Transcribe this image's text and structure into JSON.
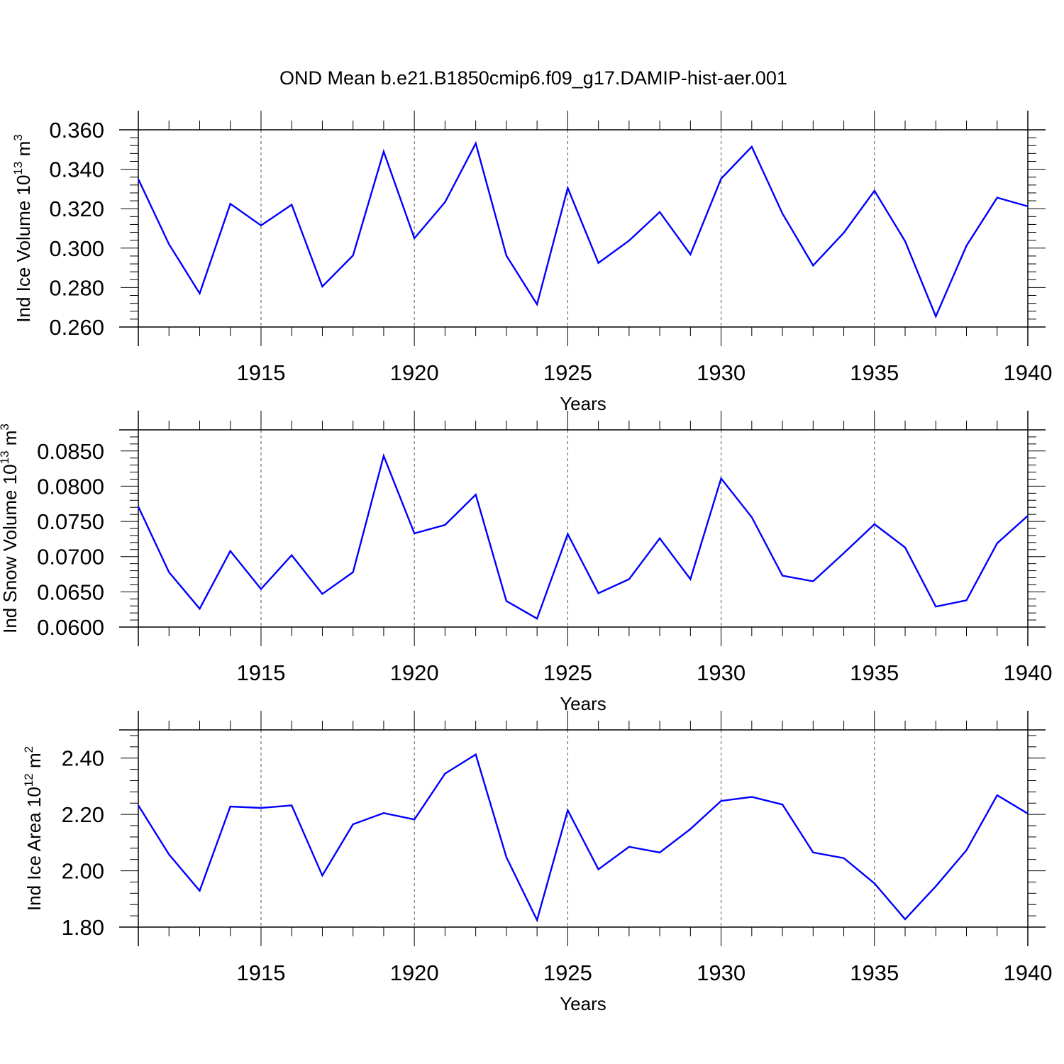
{
  "figure_title": "OND Mean b.e21.B1850cmip6.f09_g17.DAMIP-hist-aer.001",
  "colors": {
    "line": "#0000ff",
    "axis": "#000000",
    "grid": "#555555"
  },
  "chart_data": [
    {
      "type": "line",
      "title": "OND Mean b.e21.B1850cmip6.f09_g17.DAMIP-hist-aer.001",
      "xlabel": "Years",
      "ylabel": {
        "text": "Ind Ice Volume 10",
        "exponent": "13",
        "unit": " m",
        "unit_exponent": "3"
      },
      "xlim": [
        1911,
        1940
      ],
      "ylim": [
        0.26,
        0.36
      ],
      "x_ticks": [
        1915,
        1920,
        1925,
        1930,
        1935,
        1940
      ],
      "x_tick_labels": [
        "1915",
        "1920",
        "1925",
        "1930",
        "1935",
        "1940"
      ],
      "y_ticks": [
        0.26,
        0.28,
        0.3,
        0.32,
        0.34,
        0.36
      ],
      "y_tick_labels": [
        "0.260",
        "0.280",
        "0.300",
        "0.320",
        "0.340",
        "0.360"
      ],
      "grid": "vertical dashed at major x ticks",
      "x": [
        1911,
        1912,
        1913,
        1914,
        1915,
        1916,
        1917,
        1918,
        1919,
        1920,
        1921,
        1922,
        1923,
        1924,
        1925,
        1926,
        1927,
        1928,
        1929,
        1930,
        1931,
        1932,
        1933,
        1934,
        1935,
        1936,
        1937,
        1938,
        1939,
        1940
      ],
      "series": [
        {
          "name": "Ind Ice Volume",
          "values": [
            0.335,
            0.302,
            0.277,
            0.3225,
            0.3115,
            0.322,
            0.2805,
            0.2963,
            0.349,
            0.305,
            0.3233,
            0.3531,
            0.2962,
            0.2715,
            0.3305,
            0.2925,
            0.3038,
            0.3183,
            0.2968,
            0.3352,
            0.3514,
            0.3175,
            0.2912,
            0.3078,
            0.3291,
            0.3035,
            0.2654,
            0.3012,
            0.3256,
            0.3212
          ]
        }
      ]
    },
    {
      "type": "line",
      "xlabel": "Years",
      "ylabel": {
        "text": "Ind Snow Volume 10",
        "exponent": "13",
        "unit": " m",
        "unit_exponent": "3"
      },
      "xlim": [
        1911,
        1940
      ],
      "ylim": [
        0.06,
        0.088
      ],
      "x_ticks": [
        1915,
        1920,
        1925,
        1930,
        1935,
        1940
      ],
      "x_tick_labels": [
        "1915",
        "1920",
        "1925",
        "1930",
        "1935",
        "1940"
      ],
      "y_ticks": [
        0.06,
        0.065,
        0.07,
        0.075,
        0.08,
        0.085
      ],
      "y_tick_labels": [
        "0.0600",
        "0.0650",
        "0.0700",
        "0.0750",
        "0.0800",
        "0.0850"
      ],
      "grid": "vertical dashed at major x ticks",
      "x": [
        1911,
        1912,
        1913,
        1914,
        1915,
        1916,
        1917,
        1918,
        1919,
        1920,
        1921,
        1922,
        1923,
        1924,
        1925,
        1926,
        1927,
        1928,
        1929,
        1930,
        1931,
        1932,
        1933,
        1934,
        1935,
        1936,
        1937,
        1938,
        1939,
        1940
      ],
      "series": [
        {
          "name": "Ind Snow Volume",
          "values": [
            0.0771,
            0.0678,
            0.0626,
            0.0708,
            0.0654,
            0.0702,
            0.0647,
            0.0678,
            0.0843,
            0.0733,
            0.0745,
            0.0788,
            0.0637,
            0.0612,
            0.0732,
            0.0648,
            0.0668,
            0.0726,
            0.0668,
            0.0811,
            0.0756,
            0.0673,
            0.0665,
            0.0705,
            0.0746,
            0.0713,
            0.0629,
            0.0638,
            0.0719,
            0.0758
          ]
        }
      ]
    },
    {
      "type": "line",
      "xlabel": "Years",
      "ylabel": {
        "text": "Ind Ice Area 10",
        "exponent": "12",
        "unit": " m",
        "unit_exponent": "2"
      },
      "xlim": [
        1911,
        1940
      ],
      "ylim": [
        1.8,
        2.5
      ],
      "x_ticks": [
        1915,
        1920,
        1925,
        1930,
        1935,
        1940
      ],
      "x_tick_labels": [
        "1915",
        "1920",
        "1925",
        "1930",
        "1935",
        "1940"
      ],
      "y_ticks": [
        1.8,
        2.0,
        2.2,
        2.4
      ],
      "y_tick_labels": [
        "1.80",
        "2.00",
        "2.20",
        "2.40"
      ],
      "grid": "vertical dashed at major x ticks",
      "x": [
        1911,
        1912,
        1913,
        1914,
        1915,
        1916,
        1917,
        1918,
        1919,
        1920,
        1921,
        1922,
        1923,
        1924,
        1925,
        1926,
        1927,
        1928,
        1929,
        1930,
        1931,
        1932,
        1933,
        1934,
        1935,
        1936,
        1937,
        1938,
        1939,
        1940
      ],
      "series": [
        {
          "name": "Ind Ice Area",
          "values": [
            2.232,
            2.058,
            1.929,
            2.228,
            2.223,
            2.232,
            1.983,
            2.165,
            2.205,
            2.182,
            2.345,
            2.413,
            2.048,
            1.825,
            2.215,
            2.005,
            2.085,
            2.065,
            2.148,
            2.248,
            2.262,
            2.235,
            2.065,
            2.045,
            1.955,
            1.828,
            1.945,
            2.073,
            2.268,
            2.203
          ]
        }
      ]
    }
  ]
}
